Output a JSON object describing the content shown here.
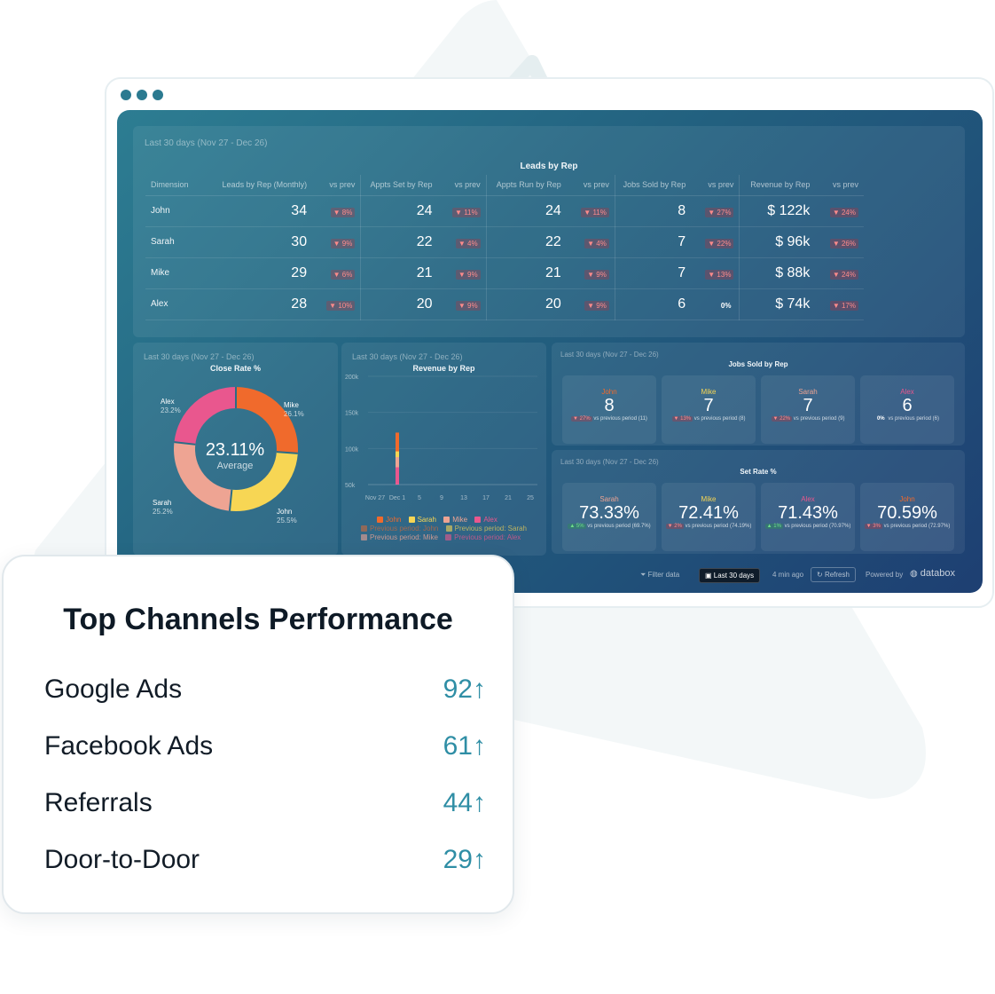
{
  "period": "Last 30 days (Nov 27 - Dec 26)",
  "leads": {
    "title": "Leads by Rep",
    "headers": [
      "Dimension",
      "Leads by Rep (Monthly)",
      "vs prev",
      "Appts Set by Rep",
      "vs prev",
      "Appts Run by Rep",
      "vs prev",
      "Jobs Sold by Rep",
      "vs prev",
      "Revenue by Rep",
      "vs prev"
    ],
    "rows": [
      {
        "name": "John",
        "leads": "34",
        "leads_chg": "▼ 8%",
        "set": "24",
        "set_chg": "▼ 11%",
        "run": "24",
        "run_chg": "▼ 11%",
        "sold": "8",
        "sold_chg": "▼ 27%",
        "rev": "$ 122k",
        "rev_chg": "▼ 24%"
      },
      {
        "name": "Sarah",
        "leads": "30",
        "leads_chg": "▼ 9%",
        "set": "22",
        "set_chg": "▼ 4%",
        "run": "22",
        "run_chg": "▼ 4%",
        "sold": "7",
        "sold_chg": "▼ 22%",
        "rev": "$ 96k",
        "rev_chg": "▼ 26%"
      },
      {
        "name": "Mike",
        "leads": "29",
        "leads_chg": "▼ 6%",
        "set": "21",
        "set_chg": "▼ 9%",
        "run": "21",
        "run_chg": "▼ 9%",
        "sold": "7",
        "sold_chg": "▼ 13%",
        "rev": "$ 88k",
        "rev_chg": "▼ 24%"
      },
      {
        "name": "Alex",
        "leads": "28",
        "leads_chg": "▼ 10%",
        "set": "20",
        "set_chg": "▼ 9%",
        "run": "20",
        "run_chg": "▼ 9%",
        "sold": "6",
        "sold_chg": "0%",
        "rev": "$ 74k",
        "rev_chg": "▼ 17%"
      }
    ]
  },
  "close_rate": {
    "title": "Close Rate %",
    "center_value": "23.11%",
    "center_label": "Average",
    "labels": [
      {
        "name": "Mike",
        "pct": "26.1%"
      },
      {
        "name": "John",
        "pct": "25.5%"
      },
      {
        "name": "Sarah",
        "pct": "25.2%"
      },
      {
        "name": "Alex",
        "pct": "23.2%"
      }
    ]
  },
  "revenue_chart": {
    "title": "Revenue by Rep",
    "legend": [
      "John",
      "Sarah",
      "Mike",
      "Alex"
    ],
    "legend_prev": [
      "Previous period: John",
      "Previous period: Sarah",
      "Previous period: Mike",
      "Previous period: Alex"
    ]
  },
  "jobs_sold": {
    "title": "Jobs Sold by Rep",
    "tiles": [
      {
        "name": "John",
        "value": "8",
        "chg": "▼ 27%",
        "note": "vs previous period (11)"
      },
      {
        "name": "Mike",
        "value": "7",
        "chg": "▼ 13%",
        "note": "vs previous period (8)"
      },
      {
        "name": "Sarah",
        "value": "7",
        "chg": "▼ 22%",
        "note": "vs previous period (9)"
      },
      {
        "name": "Alex",
        "value": "6",
        "chg": "0%",
        "note": "vs previous period (6)"
      }
    ]
  },
  "set_rate": {
    "title": "Set Rate %",
    "tiles": [
      {
        "name": "Sarah",
        "value": "73.33%",
        "chg": "▲ 5%",
        "note": "vs previous period (69.7%)"
      },
      {
        "name": "Mike",
        "value": "72.41%",
        "chg": "▼ 2%",
        "note": "vs previous period (74.19%)"
      },
      {
        "name": "Alex",
        "value": "71.43%",
        "chg": "▲ 1%",
        "note": "vs previous period (70.97%)"
      },
      {
        "name": "John",
        "value": "70.59%",
        "chg": "▼ 3%",
        "note": "vs previous period (72.97%)"
      }
    ]
  },
  "footer": {
    "filter": "Filter data",
    "range": "Last 30 days",
    "updated": "4 min ago",
    "refresh": "Refresh",
    "powered": "Powered by",
    "brand": "databox"
  },
  "card": {
    "title": "Top Channels Performance",
    "rows": [
      {
        "channel": "Google Ads",
        "score": "92"
      },
      {
        "channel": "Facebook Ads",
        "score": "61"
      },
      {
        "channel": "Referrals",
        "score": "44"
      },
      {
        "channel": "Door-to-Door",
        "score": "29"
      }
    ]
  },
  "chart_data": [
    {
      "type": "pie",
      "title": "Close Rate %",
      "categories": [
        "Mike",
        "John",
        "Sarah",
        "Alex"
      ],
      "values": [
        26.1,
        25.5,
        25.2,
        23.2
      ],
      "colors": [
        "#f06a2c",
        "#f7d654",
        "#eea493",
        "#e9578e"
      ]
    },
    {
      "type": "bar",
      "title": "Revenue by Rep",
      "x_ticks": [
        "Nov 27",
        "Dec 1",
        "5",
        "9",
        "13",
        "17",
        "21",
        "25"
      ],
      "y_ticks": [
        "200k",
        "150k",
        "100k",
        "50k"
      ],
      "ylim": [
        50000,
        200000
      ],
      "x_index": 1,
      "series": [
        {
          "name": "John",
          "values": [
            122000
          ],
          "color": "#f06a2c"
        },
        {
          "name": "Sarah",
          "values": [
            96000
          ],
          "color": "#f7d654"
        },
        {
          "name": "Mike",
          "values": [
            88000
          ],
          "color": "#eea493"
        },
        {
          "name": "Alex",
          "values": [
            74000
          ],
          "color": "#e9578e"
        }
      ]
    }
  ]
}
